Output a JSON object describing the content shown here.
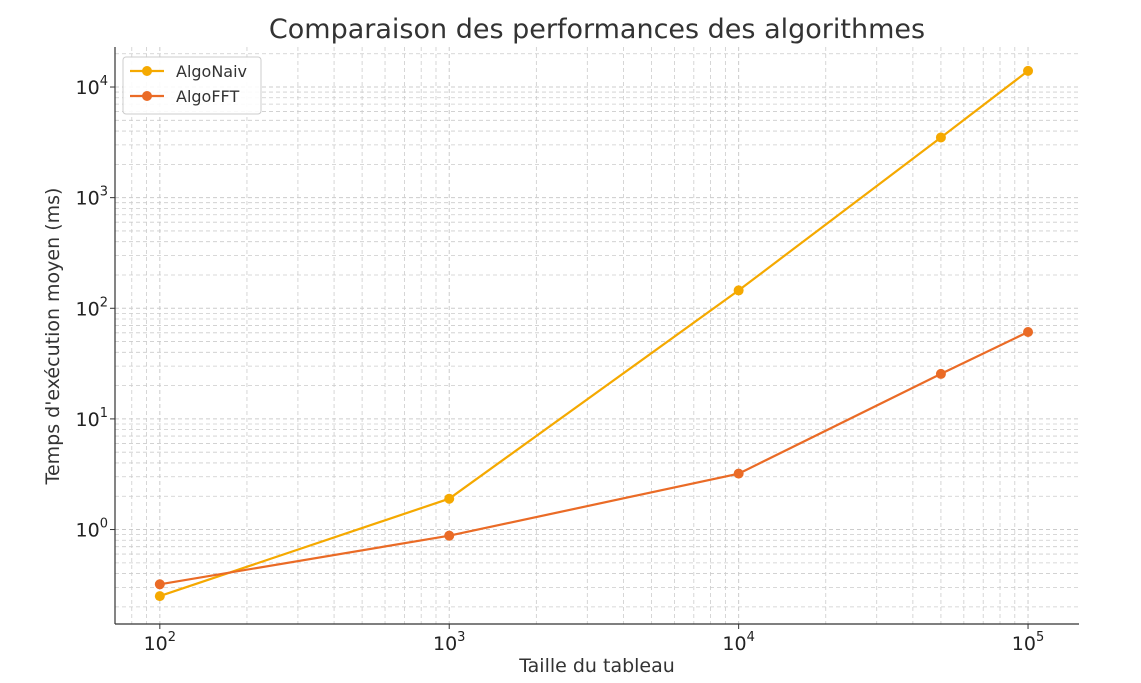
{
  "chart_data": {
    "type": "line",
    "title": "Comparaison des performances des algorithmes",
    "xlabel": "Taille du tableau",
    "ylabel": "Temps d'exécution moyen (ms)",
    "xscale": "log",
    "yscale": "log",
    "xlim": [
      70,
      150000
    ],
    "ylim": [
      0.14,
      23000
    ],
    "x_ticks": [
      {
        "value": 100,
        "base": "10",
        "exp": "2"
      },
      {
        "value": 1000,
        "base": "10",
        "exp": "3"
      },
      {
        "value": 10000,
        "base": "10",
        "exp": "4"
      },
      {
        "value": 100000,
        "base": "10",
        "exp": "5"
      }
    ],
    "y_ticks": [
      {
        "value": 1,
        "base": "10",
        "exp": "0"
      },
      {
        "value": 10,
        "base": "10",
        "exp": "1"
      },
      {
        "value": 100,
        "base": "10",
        "exp": "2"
      },
      {
        "value": 1000,
        "base": "10",
        "exp": "3"
      },
      {
        "value": 10000,
        "base": "10",
        "exp": "4"
      }
    ],
    "x": [
      100,
      1000,
      10000,
      50000,
      100000
    ],
    "series": [
      {
        "name": "AlgoNaiv",
        "color": "#f5a900",
        "values": [
          0.25,
          1.9,
          145,
          3500,
          14000
        ]
      },
      {
        "name": "AlgoFFT",
        "color": "#ea6b26",
        "values": [
          0.32,
          0.88,
          3.2,
          25.5,
          61
        ]
      }
    ],
    "grid": true,
    "legend": "top-left"
  }
}
